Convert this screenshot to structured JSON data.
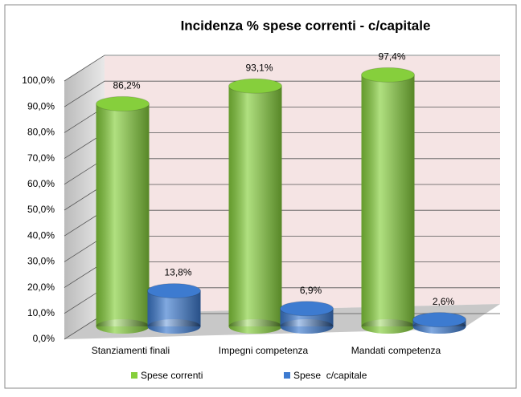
{
  "chart_data": {
    "type": "bar3d",
    "title": "Incidenza % spese correnti - c/capitale",
    "categories": [
      "Stanziamenti finali",
      "Impegni competenza",
      "Mandati competenza"
    ],
    "series": [
      {
        "name": "Spese correnti",
        "color": "#86cf3c",
        "values": [
          86.2,
          93.1,
          97.4
        ],
        "value_labels": [
          "86,2%",
          "93,1%",
          "97,4%"
        ]
      },
      {
        "name": "Spese  c/capitale",
        "color": "#3d7bd0",
        "values": [
          13.8,
          6.9,
          2.6
        ],
        "value_labels": [
          "13,8%",
          "6,9%",
          "2,6%"
        ]
      }
    ],
    "ylim": [
      0,
      100
    ],
    "yticks": [
      {
        "value": 0,
        "label": "0,0%"
      },
      {
        "value": 10,
        "label": "10,0%"
      },
      {
        "value": 20,
        "label": "20,0%"
      },
      {
        "value": 30,
        "label": "30,0%"
      },
      {
        "value": 40,
        "label": "40,0%"
      },
      {
        "value": 50,
        "label": "50,0%"
      },
      {
        "value": 60,
        "label": "60,0%"
      },
      {
        "value": 70,
        "label": "70,0%"
      },
      {
        "value": 80,
        "label": "80,0%"
      },
      {
        "value": 90,
        "label": "90,0%"
      },
      {
        "value": 100,
        "label": "100,0%"
      }
    ],
    "grid": true,
    "legend": "bottom"
  }
}
